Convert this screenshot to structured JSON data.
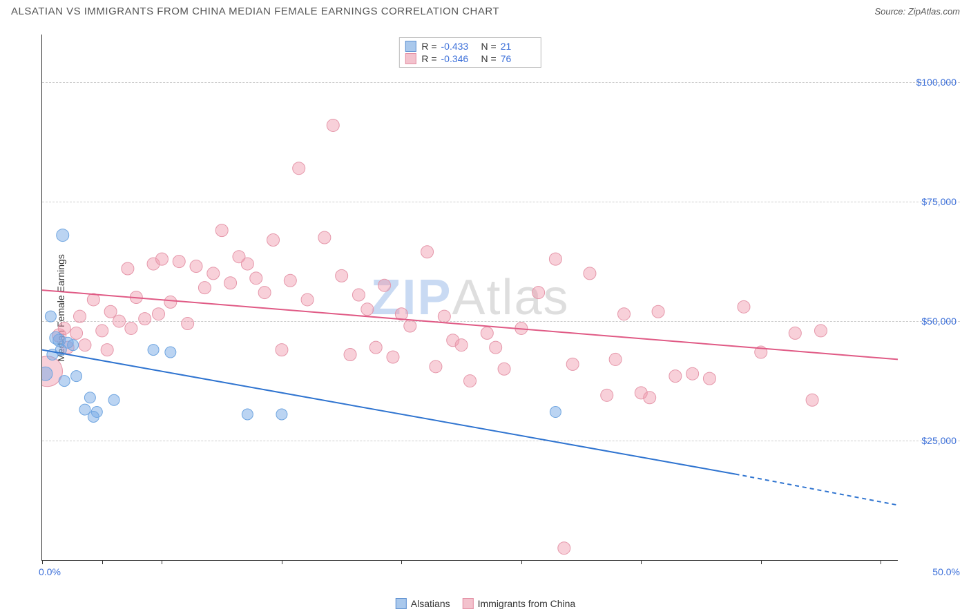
{
  "title": "ALSATIAN VS IMMIGRANTS FROM CHINA MEDIAN FEMALE EARNINGS CORRELATION CHART",
  "source_label": "Source: ZipAtlas.com",
  "watermark": {
    "part1": "ZIP",
    "part2": "Atlas"
  },
  "y_axis_label": "Median Female Earnings",
  "chart": {
    "type": "scatter",
    "xlim": [
      0,
      50
    ],
    "ylim": [
      0,
      110000
    ],
    "x_tick_positions_pct": [
      0,
      7,
      14,
      28,
      42,
      56,
      70,
      84,
      98
    ],
    "x_range_labels": {
      "left": "0.0%",
      "right": "50.0%"
    },
    "y_ticks": [
      {
        "value": 25000,
        "label": "$25,000"
      },
      {
        "value": 50000,
        "label": "$50,000"
      },
      {
        "value": 75000,
        "label": "$75,000"
      },
      {
        "value": 100000,
        "label": "$100,000"
      }
    ],
    "grid_color": "#cccccc",
    "background_color": "#ffffff",
    "series": [
      {
        "name": "Alsatians",
        "color_fill": "rgba(120,170,230,0.5)",
        "color_stroke": "#6fa5e0",
        "swatch_fill": "#a9c8ec",
        "swatch_border": "#5d8fd0",
        "R": "-0.433",
        "N": "21",
        "trend": {
          "x1": 0,
          "y1": 44000,
          "x2": 40.5,
          "y2": 18000,
          "extend_x2": 50,
          "extend_y2": 11500,
          "color": "#2f74d0",
          "width": 2
        },
        "points": [
          {
            "x": 1.2,
            "y": 68000,
            "r": 9
          },
          {
            "x": 0.5,
            "y": 51000,
            "r": 8
          },
          {
            "x": 1.0,
            "y": 46000,
            "r": 9
          },
          {
            "x": 0.8,
            "y": 46500,
            "r": 9
          },
          {
            "x": 1.5,
            "y": 45500,
            "r": 8
          },
          {
            "x": 1.1,
            "y": 44000,
            "r": 8
          },
          {
            "x": 0.2,
            "y": 39000,
            "r": 10
          },
          {
            "x": 2.0,
            "y": 38500,
            "r": 8
          },
          {
            "x": 1.3,
            "y": 37500,
            "r": 8
          },
          {
            "x": 2.8,
            "y": 34000,
            "r": 8
          },
          {
            "x": 4.2,
            "y": 33500,
            "r": 8
          },
          {
            "x": 2.5,
            "y": 31500,
            "r": 8
          },
          {
            "x": 3.2,
            "y": 31000,
            "r": 8
          },
          {
            "x": 3.0,
            "y": 30000,
            "r": 8
          },
          {
            "x": 6.5,
            "y": 44000,
            "r": 8
          },
          {
            "x": 7.5,
            "y": 43500,
            "r": 8
          },
          {
            "x": 12.0,
            "y": 30500,
            "r": 8
          },
          {
            "x": 14.0,
            "y": 30500,
            "r": 8
          },
          {
            "x": 1.8,
            "y": 45000,
            "r": 8
          },
          {
            "x": 30.0,
            "y": 31000,
            "r": 8
          },
          {
            "x": 0.6,
            "y": 43000,
            "r": 8
          }
        ]
      },
      {
        "name": "Immigrants from China",
        "color_fill": "rgba(240,150,170,0.45)",
        "color_stroke": "#e597aa",
        "swatch_fill": "#f3c2cd",
        "swatch_border": "#e38fa3",
        "R": "-0.346",
        "N": "76",
        "trend": {
          "x1": 0,
          "y1": 56500,
          "x2": 50,
          "y2": 42000,
          "color": "#e05a85",
          "width": 2
        },
        "points": [
          {
            "x": 0.3,
            "y": 39500,
            "r": 22
          },
          {
            "x": 1.0,
            "y": 47000,
            "r": 10
          },
          {
            "x": 1.3,
            "y": 48500,
            "r": 9
          },
          {
            "x": 1.5,
            "y": 44500,
            "r": 9
          },
          {
            "x": 2.0,
            "y": 47500,
            "r": 9
          },
          {
            "x": 2.2,
            "y": 51000,
            "r": 9
          },
          {
            "x": 2.5,
            "y": 45000,
            "r": 9
          },
          {
            "x": 3.0,
            "y": 54500,
            "r": 9
          },
          {
            "x": 3.5,
            "y": 48000,
            "r": 9
          },
          {
            "x": 4.0,
            "y": 52000,
            "r": 9
          },
          {
            "x": 4.5,
            "y": 50000,
            "r": 9
          },
          {
            "x": 5.0,
            "y": 61000,
            "r": 9
          },
          {
            "x": 5.5,
            "y": 55000,
            "r": 9
          },
          {
            "x": 6.0,
            "y": 50500,
            "r": 9
          },
          {
            "x": 6.5,
            "y": 62000,
            "r": 9
          },
          {
            "x": 7.0,
            "y": 63000,
            "r": 9
          },
          {
            "x": 7.5,
            "y": 54000,
            "r": 9
          },
          {
            "x": 8.0,
            "y": 62500,
            "r": 9
          },
          {
            "x": 8.5,
            "y": 49500,
            "r": 9
          },
          {
            "x": 9.0,
            "y": 61500,
            "r": 9
          },
          {
            "x": 9.5,
            "y": 57000,
            "r": 9
          },
          {
            "x": 10.0,
            "y": 60000,
            "r": 9
          },
          {
            "x": 10.5,
            "y": 69000,
            "r": 9
          },
          {
            "x": 11.0,
            "y": 58000,
            "r": 9
          },
          {
            "x": 11.5,
            "y": 63500,
            "r": 9
          },
          {
            "x": 12.0,
            "y": 62000,
            "r": 9
          },
          {
            "x": 12.5,
            "y": 59000,
            "r": 9
          },
          {
            "x": 13.0,
            "y": 56000,
            "r": 9
          },
          {
            "x": 13.5,
            "y": 67000,
            "r": 9
          },
          {
            "x": 14.0,
            "y": 44000,
            "r": 9
          },
          {
            "x": 14.5,
            "y": 58500,
            "r": 9
          },
          {
            "x": 15.0,
            "y": 82000,
            "r": 9
          },
          {
            "x": 15.5,
            "y": 54500,
            "r": 9
          },
          {
            "x": 16.5,
            "y": 67500,
            "r": 9
          },
          {
            "x": 17.0,
            "y": 91000,
            "r": 9
          },
          {
            "x": 17.5,
            "y": 59500,
            "r": 9
          },
          {
            "x": 18.0,
            "y": 43000,
            "r": 9
          },
          {
            "x": 18.5,
            "y": 55500,
            "r": 9
          },
          {
            "x": 19.0,
            "y": 52500,
            "r": 9
          },
          {
            "x": 19.5,
            "y": 44500,
            "r": 9
          },
          {
            "x": 20.0,
            "y": 57500,
            "r": 9
          },
          {
            "x": 20.5,
            "y": 42500,
            "r": 9
          },
          {
            "x": 21.0,
            "y": 51500,
            "r": 9
          },
          {
            "x": 21.5,
            "y": 49000,
            "r": 9
          },
          {
            "x": 22.5,
            "y": 64500,
            "r": 9
          },
          {
            "x": 23.0,
            "y": 40500,
            "r": 9
          },
          {
            "x": 23.5,
            "y": 51000,
            "r": 9
          },
          {
            "x": 24.0,
            "y": 46000,
            "r": 9
          },
          {
            "x": 24.5,
            "y": 45000,
            "r": 9
          },
          {
            "x": 25.0,
            "y": 37500,
            "r": 9
          },
          {
            "x": 26.0,
            "y": 47500,
            "r": 9
          },
          {
            "x": 26.5,
            "y": 44500,
            "r": 9
          },
          {
            "x": 27.0,
            "y": 40000,
            "r": 9
          },
          {
            "x": 28.0,
            "y": 48500,
            "r": 9
          },
          {
            "x": 29.0,
            "y": 56000,
            "r": 9
          },
          {
            "x": 30.0,
            "y": 63000,
            "r": 9
          },
          {
            "x": 31.0,
            "y": 41000,
            "r": 9
          },
          {
            "x": 32.0,
            "y": 60000,
            "r": 9
          },
          {
            "x": 33.0,
            "y": 34500,
            "r": 9
          },
          {
            "x": 33.5,
            "y": 42000,
            "r": 9
          },
          {
            "x": 34.0,
            "y": 51500,
            "r": 9
          },
          {
            "x": 35.0,
            "y": 35000,
            "r": 9
          },
          {
            "x": 35.5,
            "y": 34000,
            "r": 9
          },
          {
            "x": 36.0,
            "y": 52000,
            "r": 9
          },
          {
            "x": 37.0,
            "y": 38500,
            "r": 9
          },
          {
            "x": 38.0,
            "y": 39000,
            "r": 9
          },
          {
            "x": 39.0,
            "y": 38000,
            "r": 9
          },
          {
            "x": 30.5,
            "y": 2500,
            "r": 9
          },
          {
            "x": 41.0,
            "y": 53000,
            "r": 9
          },
          {
            "x": 42.0,
            "y": 43500,
            "r": 9
          },
          {
            "x": 44.0,
            "y": 47500,
            "r": 9
          },
          {
            "x": 45.0,
            "y": 33500,
            "r": 9
          },
          {
            "x": 45.5,
            "y": 48000,
            "r": 9
          },
          {
            "x": 3.8,
            "y": 44000,
            "r": 9
          },
          {
            "x": 5.2,
            "y": 48500,
            "r": 9
          },
          {
            "x": 6.8,
            "y": 51500,
            "r": 9
          }
        ]
      }
    ],
    "legend_bottom": [
      {
        "label": "Alsatians",
        "series_index": 0
      },
      {
        "label": "Immigrants from China",
        "series_index": 1
      }
    ]
  }
}
